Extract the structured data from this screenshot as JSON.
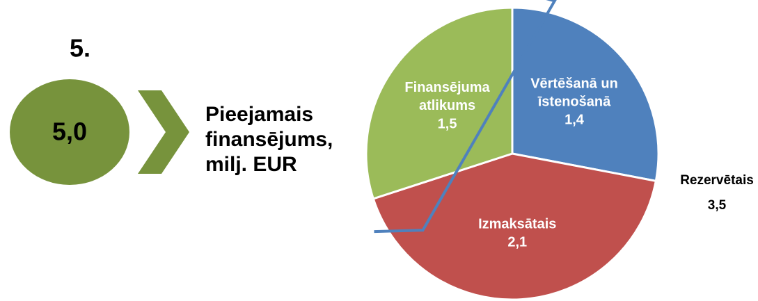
{
  "chart_data": {
    "type": "pie",
    "step": "5.",
    "total": {
      "value": 5.0,
      "label": "5,0"
    },
    "heading": [
      "Pieejamais",
      "finansējums,",
      "milj. EUR"
    ],
    "categories": [
      "Vērtēšanā un īstenošanā",
      "Izmaksātais",
      "Finansējuma atlikums"
    ],
    "values": [
      1.4,
      2.1,
      1.5
    ],
    "value_labels": [
      "1,4",
      "2,1",
      "1,5"
    ],
    "colors": [
      "#4f81bd",
      "#c0504d",
      "#9bbb59"
    ],
    "bracket": {
      "label": "Rezervētais",
      "value": 3.5,
      "value_label": "3,5",
      "color": "#4f81bd"
    }
  }
}
